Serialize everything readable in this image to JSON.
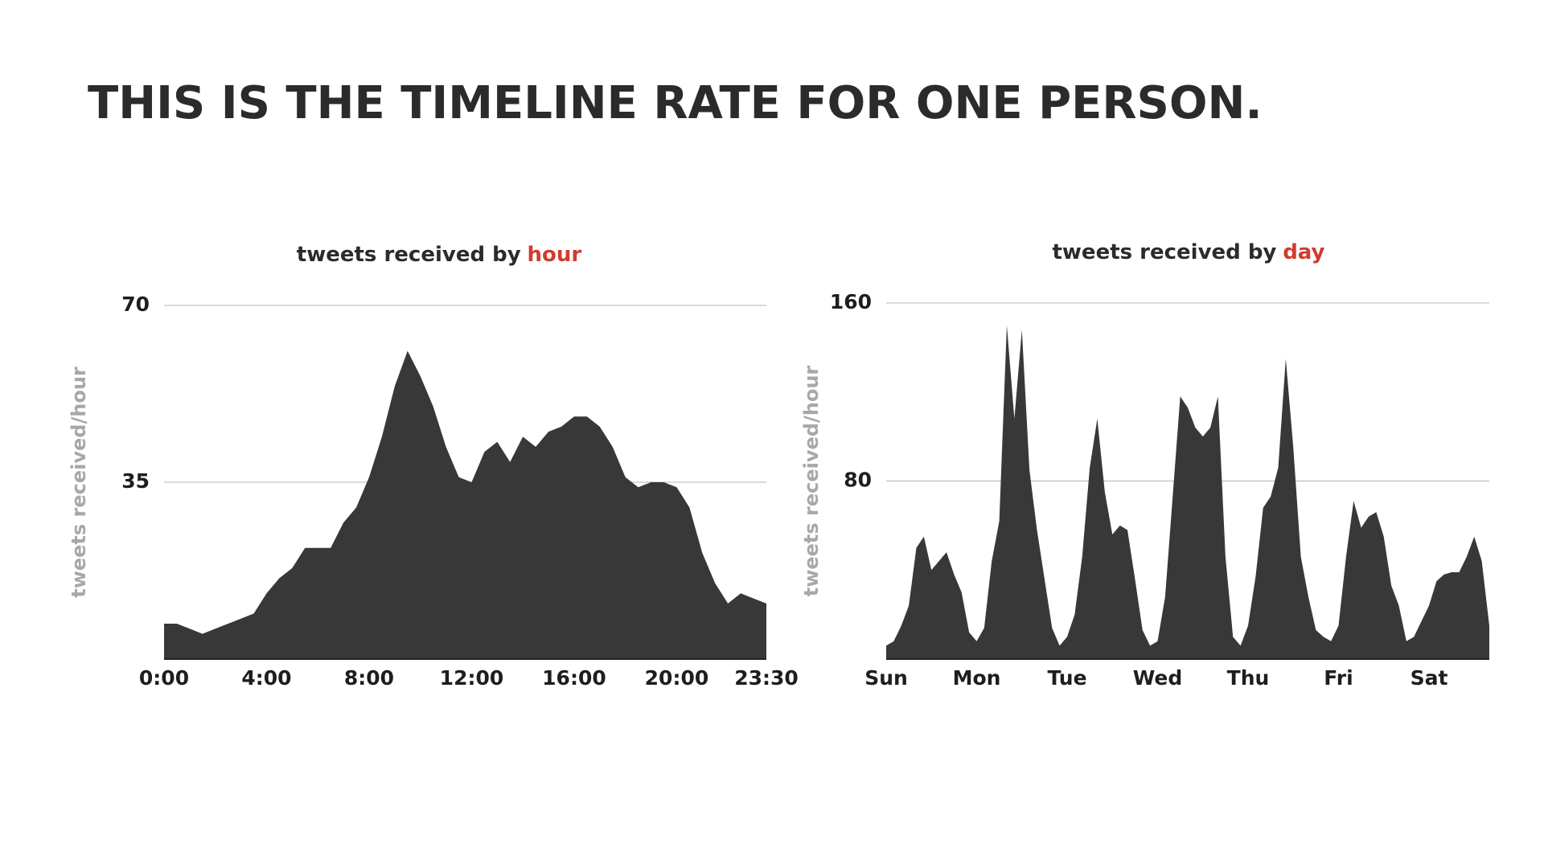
{
  "title": "THIS IS THE TIMELINE RATE FOR ONE PERSON.",
  "chart_data": [
    {
      "type": "area",
      "title": "tweets received by",
      "title_highlight": "hour",
      "y_label": "tweets received/hour",
      "color": "#383838",
      "highlight_color": "#d13b2f",
      "grid": true,
      "categories": [
        "0:00",
        null,
        null,
        null,
        null,
        null,
        null,
        null,
        "4:00",
        null,
        null,
        null,
        null,
        null,
        null,
        null,
        "8:00",
        null,
        null,
        null,
        null,
        null,
        null,
        null,
        "12:00",
        null,
        null,
        null,
        null,
        null,
        null,
        null,
        "16:00",
        null,
        null,
        null,
        null,
        null,
        null,
        null,
        "20:00",
        null,
        null,
        null,
        null,
        null,
        null,
        "23:30"
      ],
      "values": [
        7,
        7,
        6,
        5,
        6,
        7,
        8,
        9,
        13,
        16,
        18,
        22,
        22,
        22,
        27,
        30,
        36,
        44,
        54,
        61,
        56,
        50,
        42,
        36,
        35,
        41,
        43,
        39,
        44,
        42,
        45,
        46,
        48,
        48,
        46,
        42,
        36,
        34,
        35,
        35,
        34,
        30,
        21,
        15,
        11,
        13,
        12,
        11
      ],
      "ylim": [
        0,
        70
      ],
      "yticks": [
        35,
        70
      ]
    },
    {
      "type": "area",
      "title": "tweets received by",
      "title_highlight": "day",
      "y_label": "tweets received/hour",
      "color": "#383838",
      "highlight_color": "#d13b2f",
      "grid": true,
      "categories": [
        "Sun",
        null,
        null,
        null,
        null,
        null,
        null,
        null,
        null,
        null,
        null,
        null,
        "Mon",
        null,
        null,
        null,
        null,
        null,
        null,
        null,
        null,
        null,
        null,
        null,
        "Tue",
        null,
        null,
        null,
        null,
        null,
        null,
        null,
        null,
        null,
        null,
        null,
        "Wed",
        null,
        null,
        null,
        null,
        null,
        null,
        null,
        null,
        null,
        null,
        null,
        "Thu",
        null,
        null,
        null,
        null,
        null,
        null,
        null,
        null,
        null,
        null,
        null,
        "Fri",
        null,
        null,
        null,
        null,
        null,
        null,
        null,
        null,
        null,
        null,
        null,
        "Sat",
        null,
        null,
        null,
        null,
        null,
        null,
        null,
        null
      ],
      "values": [
        6,
        8,
        15,
        24,
        50,
        55,
        40,
        44,
        48,
        38,
        30,
        12,
        8,
        14,
        44,
        62,
        150,
        108,
        148,
        85,
        58,
        36,
        14,
        6,
        10,
        20,
        46,
        86,
        108,
        75,
        56,
        60,
        58,
        36,
        13,
        6,
        8,
        28,
        73,
        118,
        113,
        104,
        100,
        104,
        118,
        46,
        10,
        6,
        15,
        37,
        68,
        73,
        86,
        135,
        95,
        46,
        28,
        13,
        10,
        8,
        15,
        46,
        71,
        59,
        64,
        66,
        55,
        33,
        24,
        8,
        10,
        17,
        24,
        35,
        38,
        39,
        39,
        46,
        55,
        44,
        15
      ],
      "ylim": [
        0,
        160
      ],
      "yticks": [
        80,
        160
      ]
    }
  ]
}
